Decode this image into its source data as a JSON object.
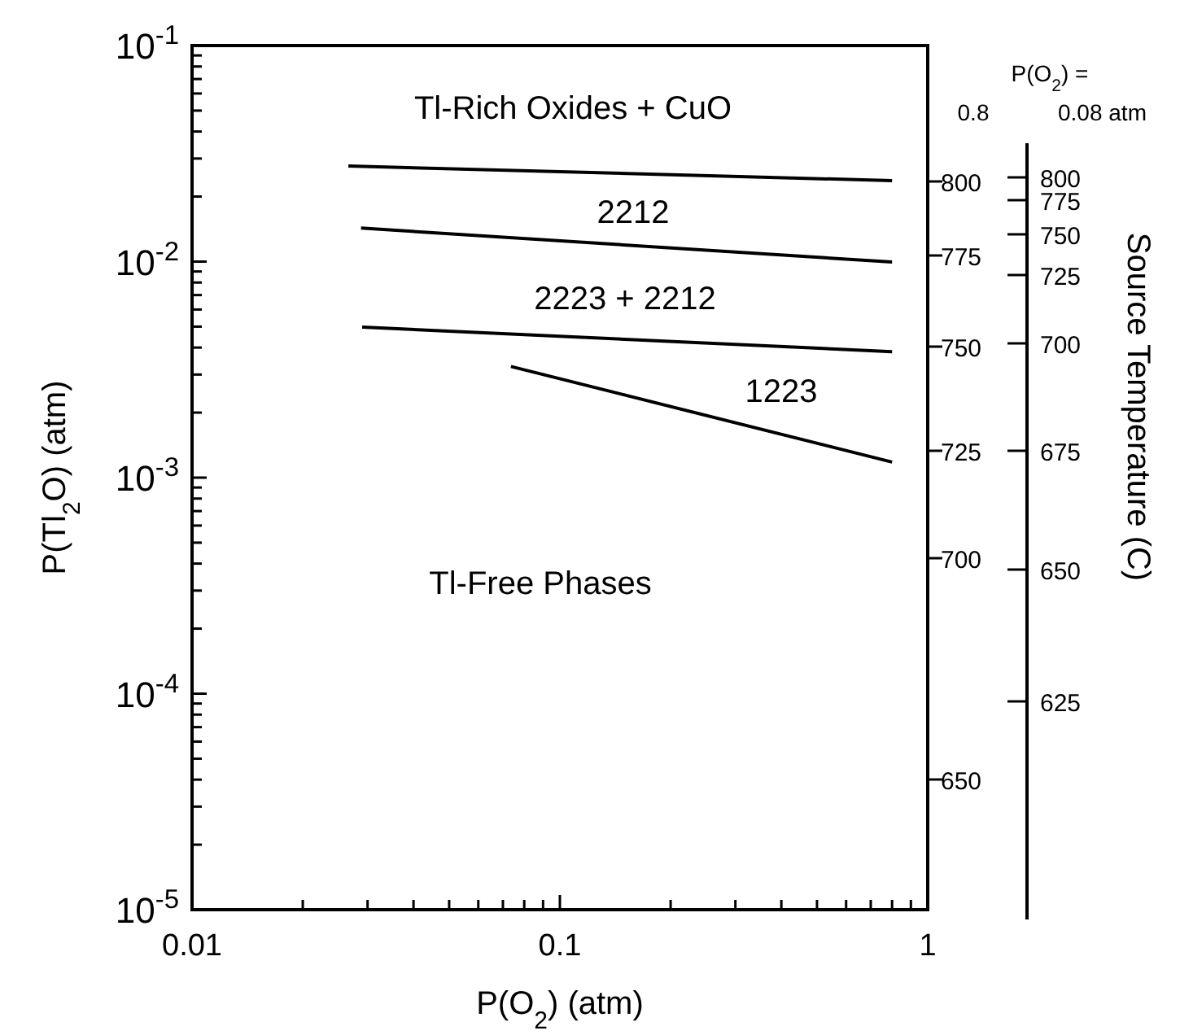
{
  "chart_data": {
    "type": "line",
    "xlabel": "P(O$_{2}$) (atm)",
    "ylabel": "P(Tl$_{2}$O) (atm)",
    "log": "xy",
    "grid": false,
    "xlim": [
      0.01,
      1
    ],
    "ylim": [
      1e-05,
      0.1
    ],
    "xticks": [
      {
        "value": 0.01,
        "label": "0.01"
      },
      {
        "value": 0.02,
        "label": null
      },
      {
        "value": 0.03,
        "label": null
      },
      {
        "value": 0.04,
        "label": null
      },
      {
        "value": 0.05,
        "label": null
      },
      {
        "value": 0.06,
        "label": null
      },
      {
        "value": 0.07,
        "label": null
      },
      {
        "value": 0.08,
        "label": null
      },
      {
        "value": 0.09,
        "label": null
      },
      {
        "value": 0.1,
        "label": "0.1"
      },
      {
        "value": 0.2,
        "label": null
      },
      {
        "value": 0.3,
        "label": null
      },
      {
        "value": 0.4,
        "label": null
      },
      {
        "value": 0.5,
        "label": null
      },
      {
        "value": 0.6,
        "label": null
      },
      {
        "value": 0.7,
        "label": null
      },
      {
        "value": 0.8,
        "label": null
      },
      {
        "value": 0.9,
        "label": null
      },
      {
        "value": 1,
        "label": "1"
      }
    ],
    "yticks": [
      {
        "value": 1e-05,
        "label": "10$^{-5}$"
      },
      {
        "value": 2e-05,
        "label": null
      },
      {
        "value": 3e-05,
        "label": null
      },
      {
        "value": 4e-05,
        "label": null
      },
      {
        "value": 5e-05,
        "label": null
      },
      {
        "value": 6e-05,
        "label": null
      },
      {
        "value": 7e-05,
        "label": null
      },
      {
        "value": 8e-05,
        "label": null
      },
      {
        "value": 9e-05,
        "label": null
      },
      {
        "value": 0.0001,
        "label": "10$^{-4}$"
      },
      {
        "value": 0.0002,
        "label": null
      },
      {
        "value": 0.0003,
        "label": null
      },
      {
        "value": 0.0004,
        "label": null
      },
      {
        "value": 0.0005,
        "label": null
      },
      {
        "value": 0.0006,
        "label": null
      },
      {
        "value": 0.0007,
        "label": null
      },
      {
        "value": 0.0008,
        "label": null
      },
      {
        "value": 0.0009,
        "label": null
      },
      {
        "value": 0.001,
        "label": "10$^{-3}$"
      },
      {
        "value": 0.002,
        "label": null
      },
      {
        "value": 0.003,
        "label": null
      },
      {
        "value": 0.004,
        "label": null
      },
      {
        "value": 0.005,
        "label": null
      },
      {
        "value": 0.006,
        "label": null
      },
      {
        "value": 0.007,
        "label": null
      },
      {
        "value": 0.008,
        "label": null
      },
      {
        "value": 0.009,
        "label": null
      },
      {
        "value": 0.01,
        "label": "10$^{-2}$"
      },
      {
        "value": 0.02,
        "label": null
      },
      {
        "value": 0.03,
        "label": null
      },
      {
        "value": 0.04,
        "label": null
      },
      {
        "value": 0.05,
        "label": null
      },
      {
        "value": 0.06,
        "label": null
      },
      {
        "value": 0.07,
        "label": null
      },
      {
        "value": 0.08,
        "label": null
      },
      {
        "value": 0.09,
        "label": null
      },
      {
        "value": 0.1,
        "label": "10$^{-1}$"
      }
    ],
    "series": [
      {
        "color": "#000000",
        "x": [
          0.0266,
          0.8
        ],
        "values": [
          0.0277,
          0.0237
        ]
      },
      {
        "color": "#000000",
        "x": [
          0.0288,
          0.8
        ],
        "values": [
          0.0143,
          0.00995
        ]
      },
      {
        "color": "#000000",
        "x": [
          0.029,
          0.8
        ],
        "values": [
          0.00497,
          0.00383
        ]
      },
      {
        "color": "#000000",
        "x": [
          0.0736,
          0.8
        ],
        "values": [
          0.00327,
          0.00118
        ]
      }
    ],
    "annotations": [
      "Tl-Rich Oxides + CuO",
      "2212",
      "2223 + 2212",
      "1223",
      "Tl-Free Phases",
      "P(O$_{2}$) =",
      "0.8",
      "0.08 atm",
      "800",
      "775",
      "750",
      "725",
      "700",
      "650",
      "800",
      "775",
      "750",
      "725",
      "700",
      "675",
      "650",
      "625",
      "Source Temperature (C)"
    ]
  }
}
